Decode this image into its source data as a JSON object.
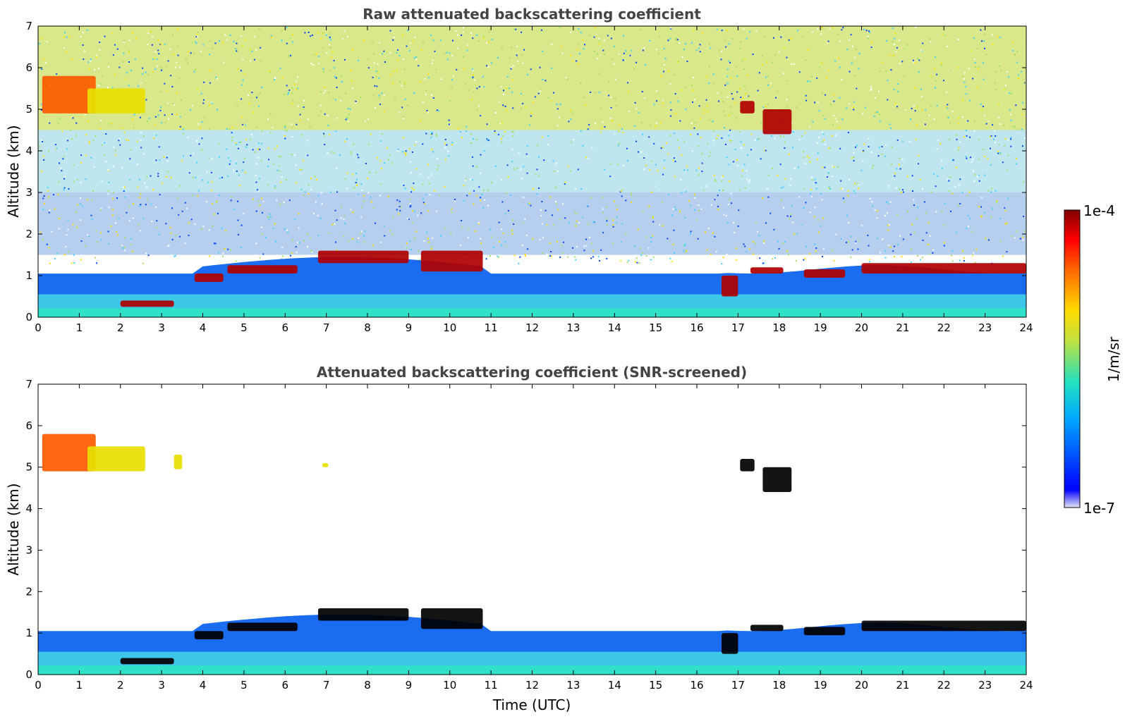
{
  "chart_data": [
    {
      "type": "heatmap",
      "title": "Raw attenuated backscattering coefficient",
      "xlabel": "",
      "ylabel": "Altitude (km)",
      "xlim": [
        0,
        24
      ],
      "ylim": [
        0,
        7
      ],
      "x_ticks": [
        "0",
        "1",
        "2",
        "3",
        "4",
        "5",
        "6",
        "7",
        "8",
        "9",
        "10",
        "11",
        "12",
        "13",
        "14",
        "15",
        "16",
        "17",
        "18",
        "19",
        "20",
        "21",
        "22",
        "23",
        "24"
      ],
      "y_ticks": [
        "0",
        "1",
        "2",
        "3",
        "4",
        "5",
        "6",
        "7"
      ],
      "noise": true,
      "features": [
        {
          "t0": 0.1,
          "t1": 1.4,
          "z0": 4.9,
          "z1": 5.8,
          "level": "orange"
        },
        {
          "t0": 1.2,
          "t1": 2.6,
          "z0": 4.9,
          "z1": 5.5,
          "level": "yellow"
        },
        {
          "t0": 17.05,
          "t1": 17.4,
          "z0": 4.9,
          "z1": 5.2,
          "level": "red"
        },
        {
          "t0": 17.6,
          "t1": 18.3,
          "z0": 4.4,
          "z1": 5.0,
          "level": "red"
        },
        {
          "t0": 6.8,
          "t1": 9.0,
          "z0": 1.3,
          "z1": 1.6,
          "level": "red"
        },
        {
          "t0": 9.3,
          "t1": 10.8,
          "z0": 1.1,
          "z1": 1.6,
          "level": "red"
        },
        {
          "t0": 4.6,
          "t1": 6.3,
          "z0": 1.05,
          "z1": 1.25,
          "level": "red"
        },
        {
          "t0": 3.8,
          "t1": 4.5,
          "z0": 0.85,
          "z1": 1.05,
          "level": "red"
        },
        {
          "t0": 17.3,
          "t1": 18.1,
          "z0": 1.05,
          "z1": 1.2,
          "level": "red"
        },
        {
          "t0": 18.6,
          "t1": 19.6,
          "z0": 0.95,
          "z1": 1.15,
          "level": "red"
        },
        {
          "t0": 20.0,
          "t1": 24.0,
          "z0": 1.05,
          "z1": 1.3,
          "level": "red"
        },
        {
          "t0": 2.0,
          "t1": 3.3,
          "z0": 0.25,
          "z1": 0.4,
          "level": "red"
        },
        {
          "t0": 16.6,
          "t1": 17.0,
          "z0": 0.5,
          "z1": 1.0,
          "level": "red"
        }
      ]
    },
    {
      "type": "heatmap",
      "title": "Attenuated backscattering coefficient (SNR-screened)",
      "xlabel": "Time (UTC)",
      "ylabel": "Altitude (km)",
      "xlim": [
        0,
        24
      ],
      "ylim": [
        0,
        7
      ],
      "x_ticks": [
        "0",
        "1",
        "2",
        "3",
        "4",
        "5",
        "6",
        "7",
        "8",
        "9",
        "10",
        "11",
        "12",
        "13",
        "14",
        "15",
        "16",
        "17",
        "18",
        "19",
        "20",
        "21",
        "22",
        "23",
        "24"
      ],
      "y_ticks": [
        "0",
        "1",
        "2",
        "3",
        "4",
        "5",
        "6",
        "7"
      ],
      "noise": false,
      "features": [
        {
          "t0": 0.1,
          "t1": 1.4,
          "z0": 4.9,
          "z1": 5.8,
          "level": "orange"
        },
        {
          "t0": 1.2,
          "t1": 2.6,
          "z0": 4.9,
          "z1": 5.5,
          "level": "yellow"
        },
        {
          "t0": 3.3,
          "t1": 3.5,
          "z0": 4.95,
          "z1": 5.3,
          "level": "yellow"
        },
        {
          "t0": 6.9,
          "t1": 7.05,
          "z0": 5.0,
          "z1": 5.1,
          "level": "yellow"
        },
        {
          "t0": 17.05,
          "t1": 17.4,
          "z0": 4.9,
          "z1": 5.2,
          "level": "black"
        },
        {
          "t0": 17.6,
          "t1": 18.3,
          "z0": 4.4,
          "z1": 5.0,
          "level": "black"
        },
        {
          "t0": 6.8,
          "t1": 9.0,
          "z0": 1.3,
          "z1": 1.6,
          "level": "black"
        },
        {
          "t0": 9.3,
          "t1": 10.8,
          "z0": 1.1,
          "z1": 1.6,
          "level": "black"
        },
        {
          "t0": 4.6,
          "t1": 6.3,
          "z0": 1.05,
          "z1": 1.25,
          "level": "black"
        },
        {
          "t0": 3.8,
          "t1": 4.5,
          "z0": 0.85,
          "z1": 1.05,
          "level": "black"
        },
        {
          "t0": 17.3,
          "t1": 18.1,
          "z0": 1.05,
          "z1": 1.2,
          "level": "black"
        },
        {
          "t0": 18.6,
          "t1": 19.6,
          "z0": 0.95,
          "z1": 1.15,
          "level": "black"
        },
        {
          "t0": 20.0,
          "t1": 24.0,
          "z0": 1.05,
          "z1": 1.3,
          "level": "black"
        },
        {
          "t0": 2.0,
          "t1": 3.3,
          "z0": 0.25,
          "z1": 0.4,
          "level": "black"
        },
        {
          "t0": 16.6,
          "t1": 17.0,
          "z0": 0.5,
          "z1": 1.0,
          "level": "black"
        }
      ]
    }
  ],
  "colorbar": {
    "max_label": "1e-4",
    "min_label": "1e-7",
    "unit_label": "1/m/sr",
    "range": [
      1e-07,
      0.0001
    ],
    "scale": "log",
    "colormap": "jet",
    "colors": [
      "#e6e6f5",
      "#0000ff",
      "#00aaff",
      "#20e0c0",
      "#c0e040",
      "#ffdd00",
      "#ff6600",
      "#ff0000",
      "#800000"
    ]
  }
}
